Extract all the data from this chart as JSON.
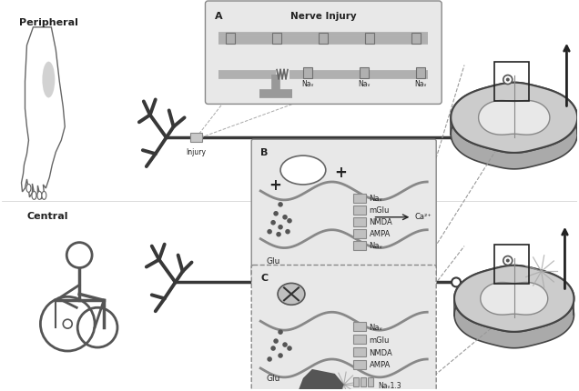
{
  "bg_color": "#ffffff",
  "label_peripheral": "Peripheral",
  "label_central": "Central",
  "label_injury": "Injury",
  "label_nerve_injury": "Nerve Injury",
  "label_A": "A",
  "label_B": "B",
  "label_C": "C",
  "gray_light": "#d8d8d8",
  "gray_mid": "#a8a8a8",
  "gray_dark": "#484848",
  "gray_box": "#e8e8e8",
  "line_color": "#222222",
  "sc_outer": "#c0c0c0",
  "sc_inner": "#e0e0e0",
  "sc_edge": "#555555"
}
